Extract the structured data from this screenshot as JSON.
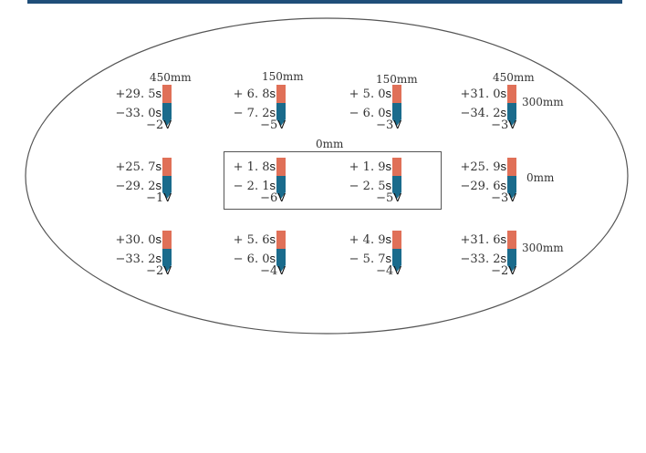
{
  "colors": {
    "topbar": "#1f4e79",
    "positive": "#e07058",
    "negative": "#1a6b8c"
  },
  "labels": {
    "col1_top": "450mm",
    "col2_top": "150mm",
    "col3_top": "150mm",
    "col4_top": "450mm",
    "right_row1": "300mm",
    "right_row2": "0mm",
    "right_row3": "300mm",
    "center": "0mm"
  },
  "cells": [
    {
      "plus": "+29. 5",
      "minus": "−33. 0",
      "volt": "−2"
    },
    {
      "plus": "+ 6. 8",
      "minus": "− 7. 2",
      "volt": "−5"
    },
    {
      "plus": "+ 5. 0",
      "minus": "− 6. 0",
      "volt": "−3"
    },
    {
      "plus": "+31. 0",
      "minus": "−34. 2",
      "volt": "−3"
    },
    {
      "plus": "+25. 7",
      "minus": "−29. 2",
      "volt": "−1"
    },
    {
      "plus": "+ 1. 8",
      "minus": "− 2. 1",
      "volt": "−6"
    },
    {
      "plus": "+ 1. 9",
      "minus": "− 2. 5",
      "volt": "−5"
    },
    {
      "plus": "+25. 9",
      "minus": "−29. 6",
      "volt": "−3"
    },
    {
      "plus": "+30. 0",
      "minus": "−33. 2",
      "volt": "−2"
    },
    {
      "plus": "+ 5. 6",
      "minus": "− 6. 0",
      "volt": "−4"
    },
    {
      "plus": "+ 4. 9",
      "minus": "− 5. 7",
      "volt": "−4"
    },
    {
      "plus": "+31. 6",
      "minus": "−33. 2",
      "volt": "−2"
    }
  ],
  "units": {
    "time": "s",
    "voltage": "V"
  }
}
